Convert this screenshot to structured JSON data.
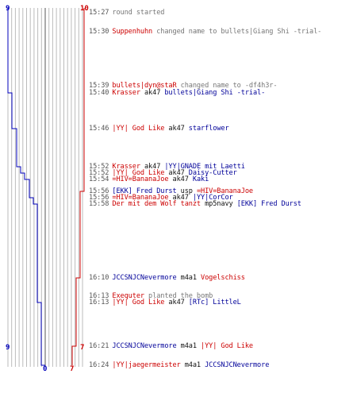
{
  "colors": {
    "team_red": "#cc0000",
    "team_blue": "#0000bb",
    "grid": "#bbbbbb",
    "time": "#555555",
    "info": "#777777",
    "weapon": "#111111"
  },
  "timeline": {
    "blue_start": "9",
    "red_start": "10",
    "blue_end": "0",
    "red_end": "7",
    "blue_players_mid": "9",
    "red_players_mid": "7"
  },
  "events": [
    {
      "time": "15:27",
      "parts": [
        {
          "text": "round started",
          "style": "gray"
        }
      ]
    },
    {
      "time": "15:30",
      "parts": [
        {
          "text": "Suppenhuhn",
          "style": "red"
        },
        {
          "text": " changed name to bullets|Giang Shi -trial-",
          "style": "gray"
        }
      ]
    },
    {
      "time": "15:39",
      "parts": [
        {
          "text": "bullets|dyn@staR",
          "style": "red"
        },
        {
          "text": " changed name to -df4h3r-",
          "style": "gray"
        }
      ]
    },
    {
      "time": "15:40",
      "parts": [
        {
          "text": "Krasser",
          "style": "red"
        },
        {
          "text": " ak47 ",
          "style": "blk"
        },
        {
          "text": "bullets|Giang Shi -trial-",
          "style": "blue"
        }
      ]
    },
    {
      "time": "15:46",
      "parts": [
        {
          "text": "|YY| God Like",
          "style": "red"
        },
        {
          "text": " ak47 ",
          "style": "blk"
        },
        {
          "text": "starflower",
          "style": "blue"
        }
      ]
    },
    {
      "time": "15:52",
      "parts": [
        {
          "text": "Krasser",
          "style": "red"
        },
        {
          "text": " ak47 ",
          "style": "blk"
        },
        {
          "text": "|YY|GNADE mit Laetti",
          "style": "blue"
        }
      ]
    },
    {
      "time": "15:52",
      "parts": [
        {
          "text": "|YY| God Like",
          "style": "red"
        },
        {
          "text": " ak47 ",
          "style": "blk"
        },
        {
          "text": "Daisy-Cutter",
          "style": "blue"
        }
      ]
    },
    {
      "time": "15:54",
      "parts": [
        {
          "text": "=HIV=BananaJoe",
          "style": "red"
        },
        {
          "text": " ak47 ",
          "style": "blk"
        },
        {
          "text": "Kaki",
          "style": "blue"
        }
      ]
    },
    {
      "time": "15:56",
      "parts": [
        {
          "text": "[EKK] Fred Durst",
          "style": "blue"
        },
        {
          "text": " usp ",
          "style": "blk"
        },
        {
          "text": "=HIV=BananaJoe",
          "style": "red"
        }
      ]
    },
    {
      "time": "15:56",
      "parts": [
        {
          "text": "=HIV=BananaJoe",
          "style": "red"
        },
        {
          "text": " ak47 ",
          "style": "blk"
        },
        {
          "text": "|YY|CorCor",
          "style": "blue"
        }
      ]
    },
    {
      "time": "15:58",
      "parts": [
        {
          "text": "Der mit dem Wolf tanzt",
          "style": "red"
        },
        {
          "text": " mp5navy ",
          "style": "blk"
        },
        {
          "text": "[EKK] Fred Durst",
          "style": "blue"
        }
      ]
    },
    {
      "time": "16:10",
      "parts": [
        {
          "text": "JCCSNJCNevermore",
          "style": "blue"
        },
        {
          "text": " m4a1 ",
          "style": "blk"
        },
        {
          "text": "Vogelschiss",
          "style": "red"
        }
      ]
    },
    {
      "time": "16:13",
      "parts": [
        {
          "text": "Exequter",
          "style": "red"
        },
        {
          "text": " planted the bomb",
          "style": "gray"
        }
      ]
    },
    {
      "time": "16:13",
      "parts": [
        {
          "text": "|YY| God Like",
          "style": "red"
        },
        {
          "text": " ak47 ",
          "style": "blk"
        },
        {
          "text": "[RTc] LittleL",
          "style": "blue"
        }
      ]
    },
    {
      "time": "16:21",
      "parts": [
        {
          "text": "JCCSNJCNevermore",
          "style": "blue"
        },
        {
          "text": " m4a1 ",
          "style": "blk"
        },
        {
          "text": "|YY| God Like",
          "style": "red"
        }
      ]
    },
    {
      "time": "16:24",
      "parts": [
        {
          "text": "|YY|jaegermeister",
          "style": "red"
        },
        {
          "text": " m4a1 ",
          "style": "blk"
        },
        {
          "text": "JCCSNJCNevermore",
          "style": "blue"
        }
      ]
    }
  ]
}
